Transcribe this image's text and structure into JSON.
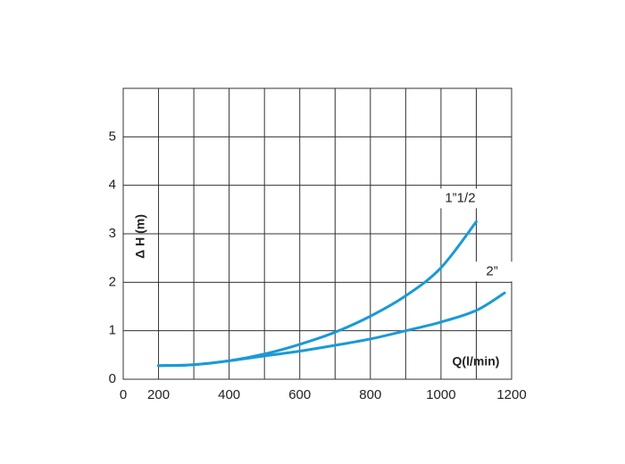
{
  "chart_data": {
    "type": "line",
    "xlabel": "Q(l/min)",
    "ylabel": "Δ H (m)",
    "xlim": [
      100,
      1200
    ],
    "xticks": [
      {
        "value": 100,
        "label": "0"
      },
      200,
      400,
      600,
      800,
      1000,
      1200
    ],
    "xminor": [
      300,
      500,
      700,
      900,
      1100
    ],
    "ylim": [
      0,
      6
    ],
    "yticks": [
      0,
      1,
      2,
      3,
      4,
      5
    ],
    "grid": true,
    "series": [
      {
        "name": "1”1/2",
        "color": "#1a9ad6",
        "x": [
          200,
          300,
          400,
          500,
          600,
          700,
          800,
          900,
          1000,
          1100
        ],
        "values": [
          0.28,
          0.3,
          0.38,
          0.52,
          0.72,
          0.97,
          1.3,
          1.72,
          2.3,
          3.25
        ]
      },
      {
        "name": "2”",
        "color": "#1a9ad6",
        "x": [
          200,
          300,
          400,
          500,
          600,
          700,
          800,
          900,
          1000,
          1100,
          1180
        ],
        "values": [
          0.28,
          0.3,
          0.38,
          0.48,
          0.58,
          0.7,
          0.83,
          1.0,
          1.18,
          1.42,
          1.78
        ]
      }
    ]
  }
}
